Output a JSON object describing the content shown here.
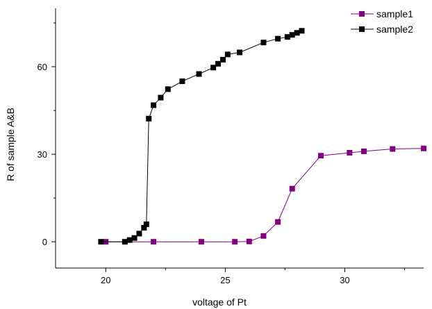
{
  "chart_data": {
    "type": "line",
    "title": "",
    "xlabel": "voltage of Pt",
    "ylabel": "R of sample A&B",
    "xlim": [
      17.9,
      33.3
    ],
    "ylim": [
      -9,
      80
    ],
    "x_ticks": [
      20,
      25,
      30
    ],
    "y_ticks": [
      0,
      30,
      60
    ],
    "legend_position": "top-right",
    "grid": false,
    "series": [
      {
        "name": "sample1",
        "color": "#800080",
        "marker": "square",
        "points": [
          [
            20.0,
            0.0
          ],
          [
            22.0,
            0.0
          ],
          [
            24.0,
            0.0
          ],
          [
            25.4,
            0.0
          ],
          [
            26.0,
            0.1
          ],
          [
            26.6,
            2.0
          ],
          [
            27.2,
            6.8
          ],
          [
            27.8,
            18.2
          ],
          [
            29.0,
            29.5
          ],
          [
            30.2,
            30.5
          ],
          [
            30.8,
            31.0
          ],
          [
            32.0,
            31.8
          ],
          [
            33.3,
            32.0
          ]
        ]
      },
      {
        "name": "sample2",
        "color": "#000000",
        "marker": "square",
        "points": [
          [
            19.8,
            0.0
          ],
          [
            20.8,
            0.0
          ],
          [
            21.0,
            0.6
          ],
          [
            21.2,
            1.3
          ],
          [
            21.4,
            2.8
          ],
          [
            21.6,
            4.8
          ],
          [
            21.7,
            6.0
          ],
          [
            21.8,
            42.2
          ],
          [
            22.0,
            46.8
          ],
          [
            22.3,
            49.4
          ],
          [
            22.6,
            52.3
          ],
          [
            23.2,
            55.0
          ],
          [
            23.9,
            57.5
          ],
          [
            24.5,
            59.7
          ],
          [
            24.7,
            61.0
          ],
          [
            24.9,
            62.4
          ],
          [
            25.1,
            64.2
          ],
          [
            25.6,
            64.9
          ],
          [
            26.6,
            68.3
          ],
          [
            27.2,
            69.6
          ],
          [
            27.6,
            70.2
          ],
          [
            27.8,
            70.9
          ],
          [
            28.0,
            71.6
          ],
          [
            28.2,
            72.3
          ]
        ]
      }
    ]
  }
}
